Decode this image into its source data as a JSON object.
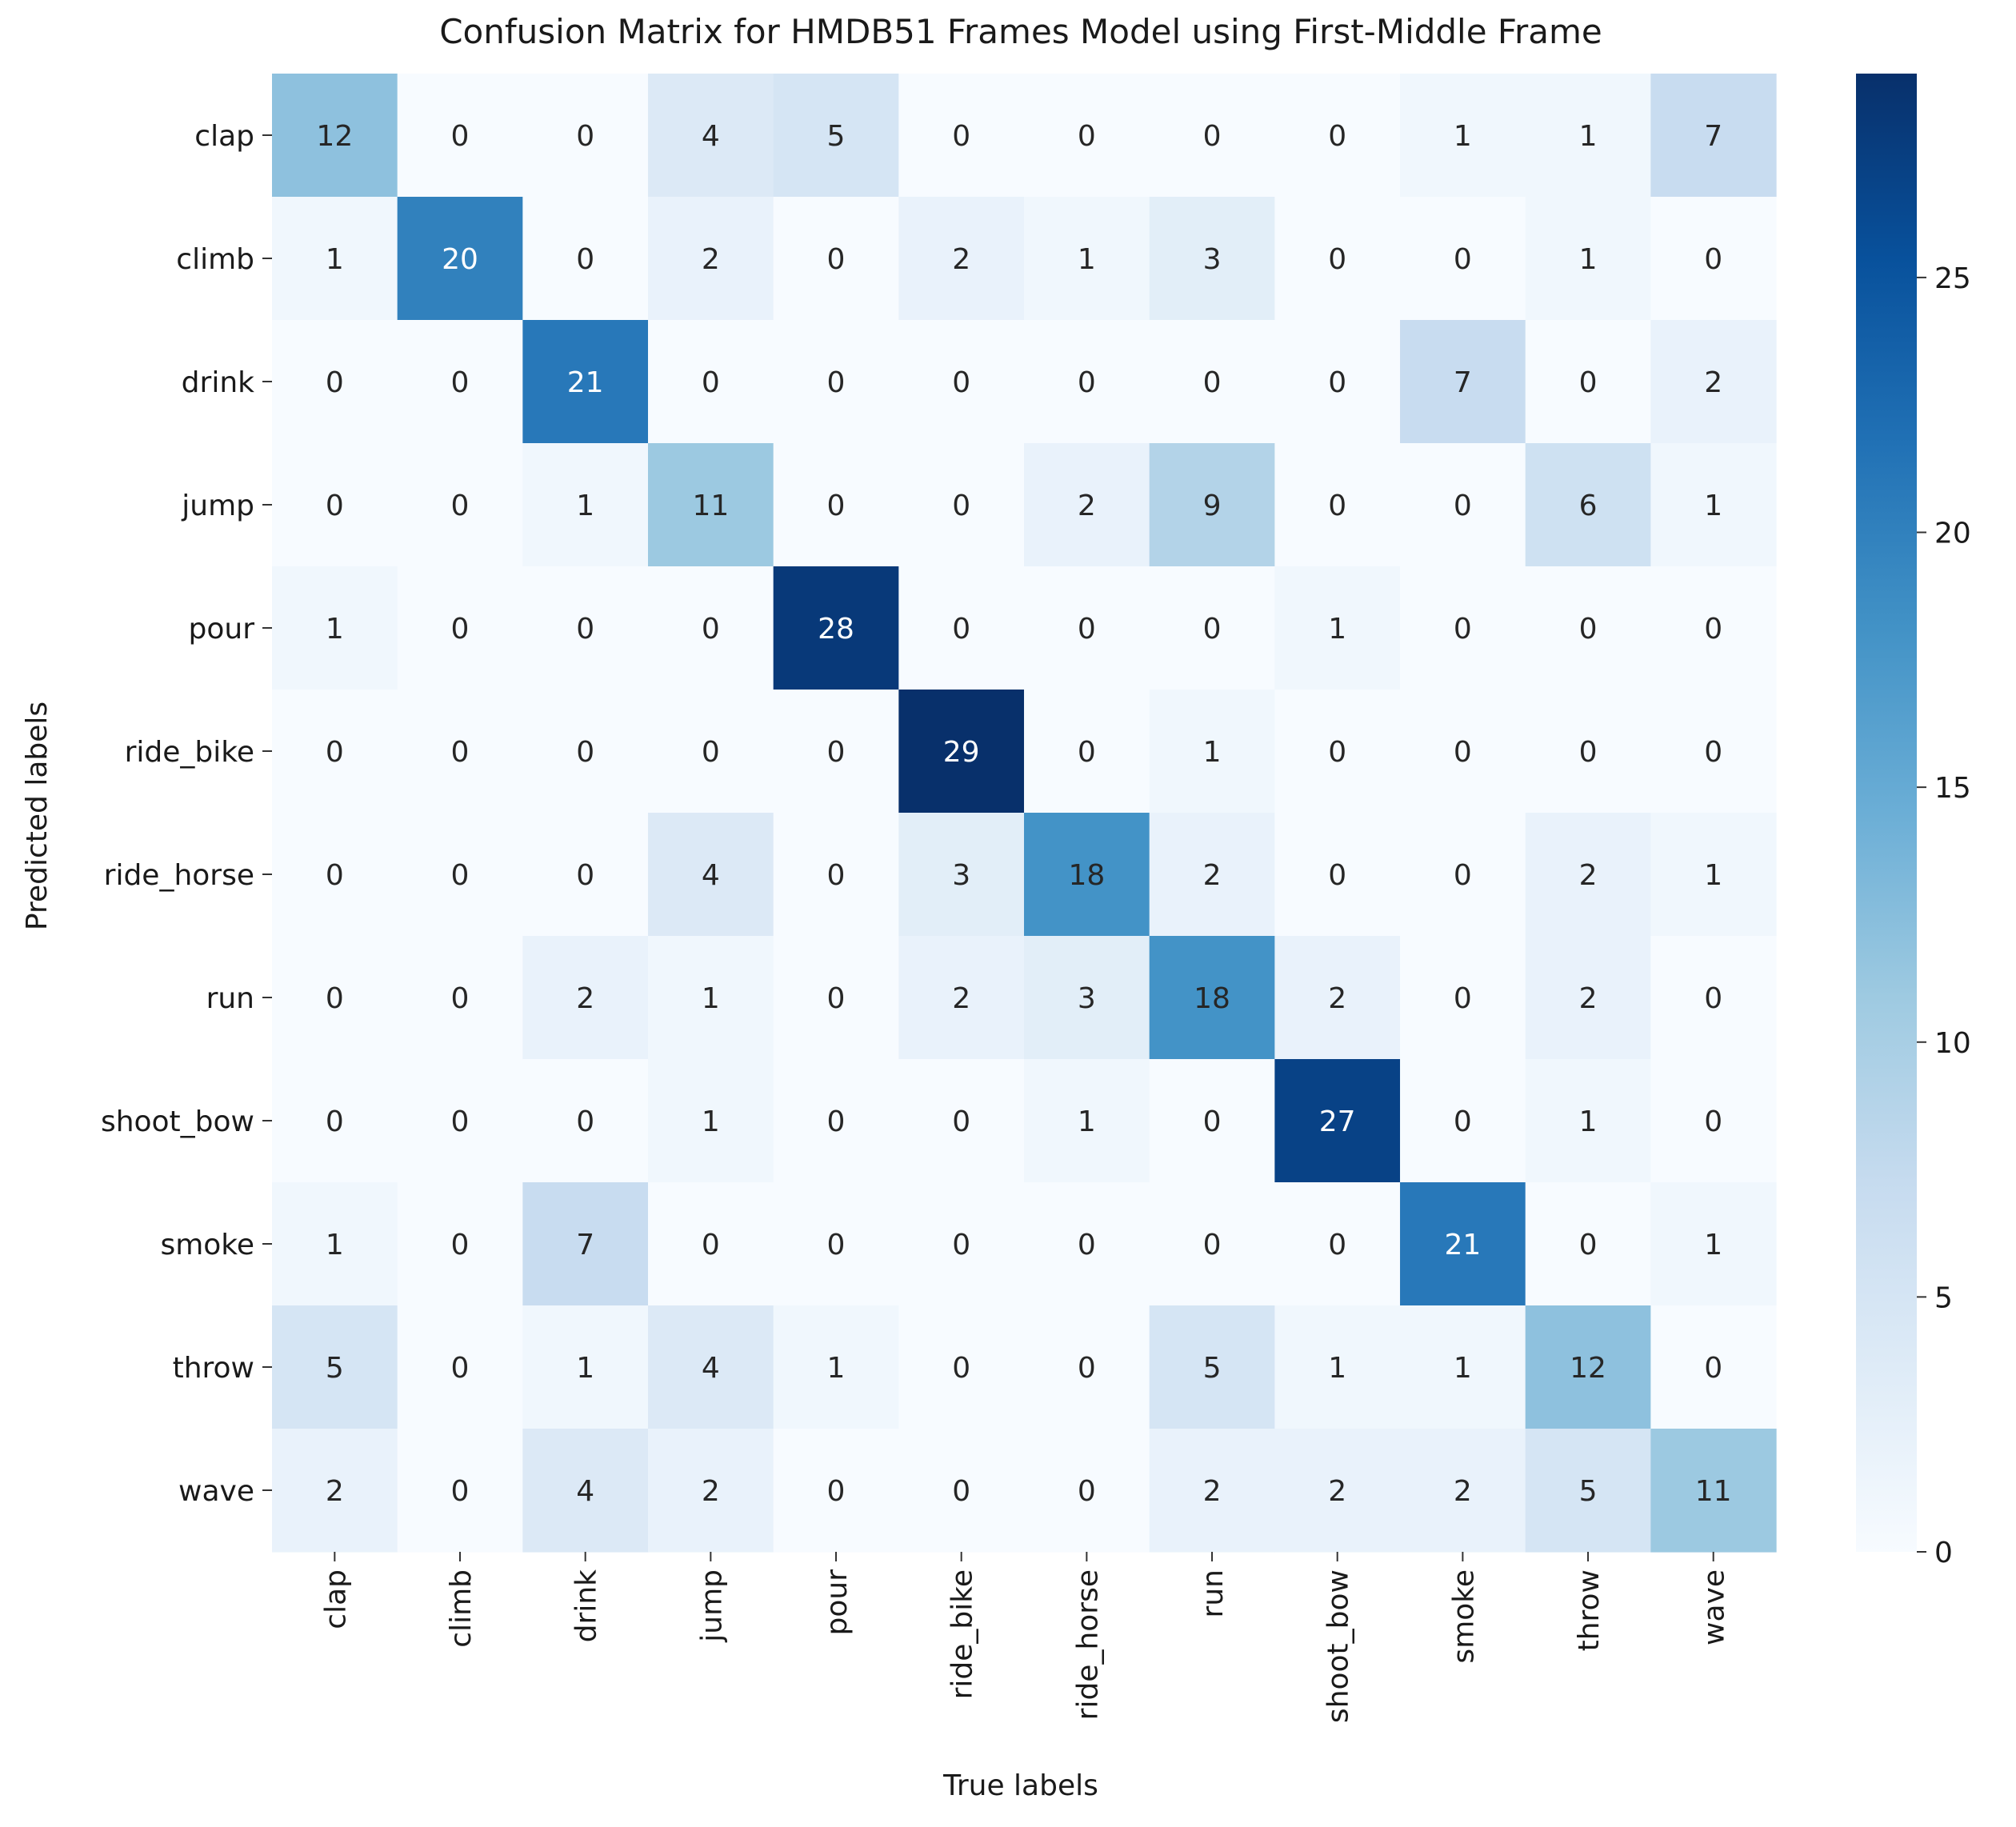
{
  "chart_data": {
    "type": "heatmap",
    "title": "Confusion Matrix for HMDB51 Frames Model using First-Middle Frame",
    "xlabel": "True labels",
    "ylabel": "Predicted labels",
    "x_categories": [
      "clap",
      "climb",
      "drink",
      "jump",
      "pour",
      "ride_bike",
      "ride_horse",
      "run",
      "shoot_bow",
      "smoke",
      "throw",
      "wave"
    ],
    "y_categories": [
      "clap",
      "climb",
      "drink",
      "jump",
      "pour",
      "ride_bike",
      "ride_horse",
      "run",
      "shoot_bow",
      "smoke",
      "throw",
      "wave"
    ],
    "values": [
      [
        12,
        0,
        0,
        4,
        5,
        0,
        0,
        0,
        0,
        1,
        1,
        7
      ],
      [
        1,
        20,
        0,
        2,
        0,
        2,
        1,
        3,
        0,
        0,
        1,
        0
      ],
      [
        0,
        0,
        21,
        0,
        0,
        0,
        0,
        0,
        0,
        7,
        0,
        2
      ],
      [
        0,
        0,
        1,
        11,
        0,
        0,
        2,
        9,
        0,
        0,
        6,
        1
      ],
      [
        1,
        0,
        0,
        0,
        28,
        0,
        0,
        0,
        1,
        0,
        0,
        0
      ],
      [
        0,
        0,
        0,
        0,
        0,
        29,
        0,
        1,
        0,
        0,
        0,
        0
      ],
      [
        0,
        0,
        0,
        4,
        0,
        3,
        18,
        2,
        0,
        0,
        2,
        1
      ],
      [
        0,
        0,
        2,
        1,
        0,
        2,
        3,
        18,
        2,
        0,
        2,
        0
      ],
      [
        0,
        0,
        0,
        1,
        0,
        0,
        1,
        0,
        27,
        0,
        1,
        0
      ],
      [
        1,
        0,
        7,
        0,
        0,
        0,
        0,
        0,
        0,
        21,
        0,
        1
      ],
      [
        5,
        0,
        1,
        4,
        1,
        0,
        0,
        5,
        1,
        1,
        12,
        0
      ],
      [
        2,
        0,
        4,
        2,
        0,
        0,
        0,
        2,
        2,
        2,
        5,
        11
      ]
    ],
    "colormap": "Blues",
    "color_range": [
      0,
      29
    ],
    "colorbar_ticks": [
      0,
      5,
      10,
      15,
      20,
      25
    ],
    "grid": false
  }
}
